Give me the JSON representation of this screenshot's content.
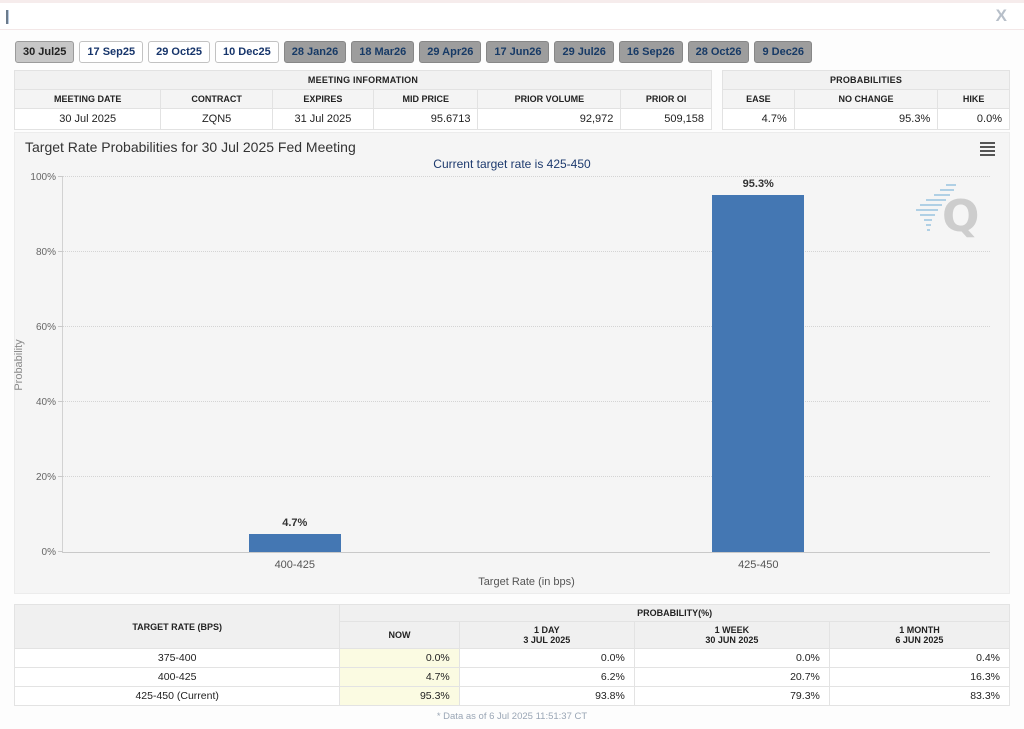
{
  "topbar": {
    "close_label": "X"
  },
  "tabs": {
    "items": [
      {
        "label": "30 Jul25",
        "state": "selected"
      },
      {
        "label": "17 Sep25",
        "state": "near"
      },
      {
        "label": "29 Oct25",
        "state": "near"
      },
      {
        "label": "10 Dec25",
        "state": "near"
      },
      {
        "label": "28 Jan26",
        "state": "far"
      },
      {
        "label": "18 Mar26",
        "state": "far"
      },
      {
        "label": "29 Apr26",
        "state": "far"
      },
      {
        "label": "17 Jun26",
        "state": "far"
      },
      {
        "label": "29 Jul26",
        "state": "far"
      },
      {
        "label": "16 Sep26",
        "state": "far"
      },
      {
        "label": "28 Oct26",
        "state": "far"
      },
      {
        "label": "9 Dec26",
        "state": "far"
      }
    ]
  },
  "meeting_info": {
    "title": "MEETING INFORMATION",
    "columns": [
      "MEETING DATE",
      "CONTRACT",
      "EXPIRES",
      "MID PRICE",
      "PRIOR VOLUME",
      "PRIOR OI"
    ],
    "values": [
      "30 Jul 2025",
      "ZQN5",
      "31 Jul 2025",
      "95.6713",
      "92,972",
      "509,158"
    ],
    "align": [
      "center",
      "center",
      "center",
      "right",
      "right",
      "right"
    ],
    "col_widths": [
      "21%",
      "16%",
      "14.5%",
      "15%",
      "20.5%",
      "13%"
    ]
  },
  "probabilities_summary": {
    "title": "PROBABILITIES",
    "columns": [
      "EASE",
      "NO CHANGE",
      "HIKE"
    ],
    "values": [
      "4.7%",
      "95.3%",
      "0.0%"
    ],
    "col_widths": [
      "25%",
      "50%",
      "25%"
    ]
  },
  "chart_data": {
    "type": "bar",
    "title": "Target Rate Probabilities for 30 Jul 2025 Fed Meeting",
    "subtitle": "Current target rate is 425-450",
    "categories": [
      "400-425",
      "425-450"
    ],
    "values": [
      4.7,
      95.3
    ],
    "data_labels": [
      "4.7%",
      "95.3%"
    ],
    "xlabel": "Target Rate (in bps)",
    "ylabel": "Probability",
    "ylim": [
      0,
      100
    ],
    "yticks": [
      "0%",
      "20%",
      "40%",
      "60%",
      "80%",
      "100%"
    ],
    "grid": "horizontal-dotted",
    "legend": "none",
    "bar_color": "#4477b3"
  },
  "history_table": {
    "corner_header": "TARGET RATE (BPS)",
    "group_header": "PROBABILITY(%)",
    "sub_headers": [
      {
        "line1": "NOW",
        "sup": "*",
        "line2": ""
      },
      {
        "line1": "1 DAY",
        "sup": "",
        "line2": "3 JUL 2025"
      },
      {
        "line1": "1 WEEK",
        "sup": "",
        "line2": "30 JUN 2025"
      },
      {
        "line1": "1 MONTH",
        "sup": "",
        "line2": "6 JUN 2025"
      }
    ],
    "col_widths": [
      "32.7%",
      "12%",
      "17.6%",
      "19.6%",
      "18.1%"
    ],
    "rows": [
      {
        "rate": "375-400",
        "values": [
          "0.0%",
          "0.0%",
          "0.0%",
          "0.4%"
        ]
      },
      {
        "rate": "400-425",
        "values": [
          "4.7%",
          "6.2%",
          "20.7%",
          "16.3%"
        ]
      },
      {
        "rate": "425-450 (Current)",
        "values": [
          "95.3%",
          "93.8%",
          "79.3%",
          "83.3%"
        ]
      }
    ],
    "footnote": "* Data as of 6 Jul 2025 11:51:37 CT"
  },
  "colors": {
    "bar": "#4477b3",
    "navy_text": "#1d3a6e",
    "now_highlight": "#fbfbe2",
    "panel_bg": "#f5f5f5"
  }
}
